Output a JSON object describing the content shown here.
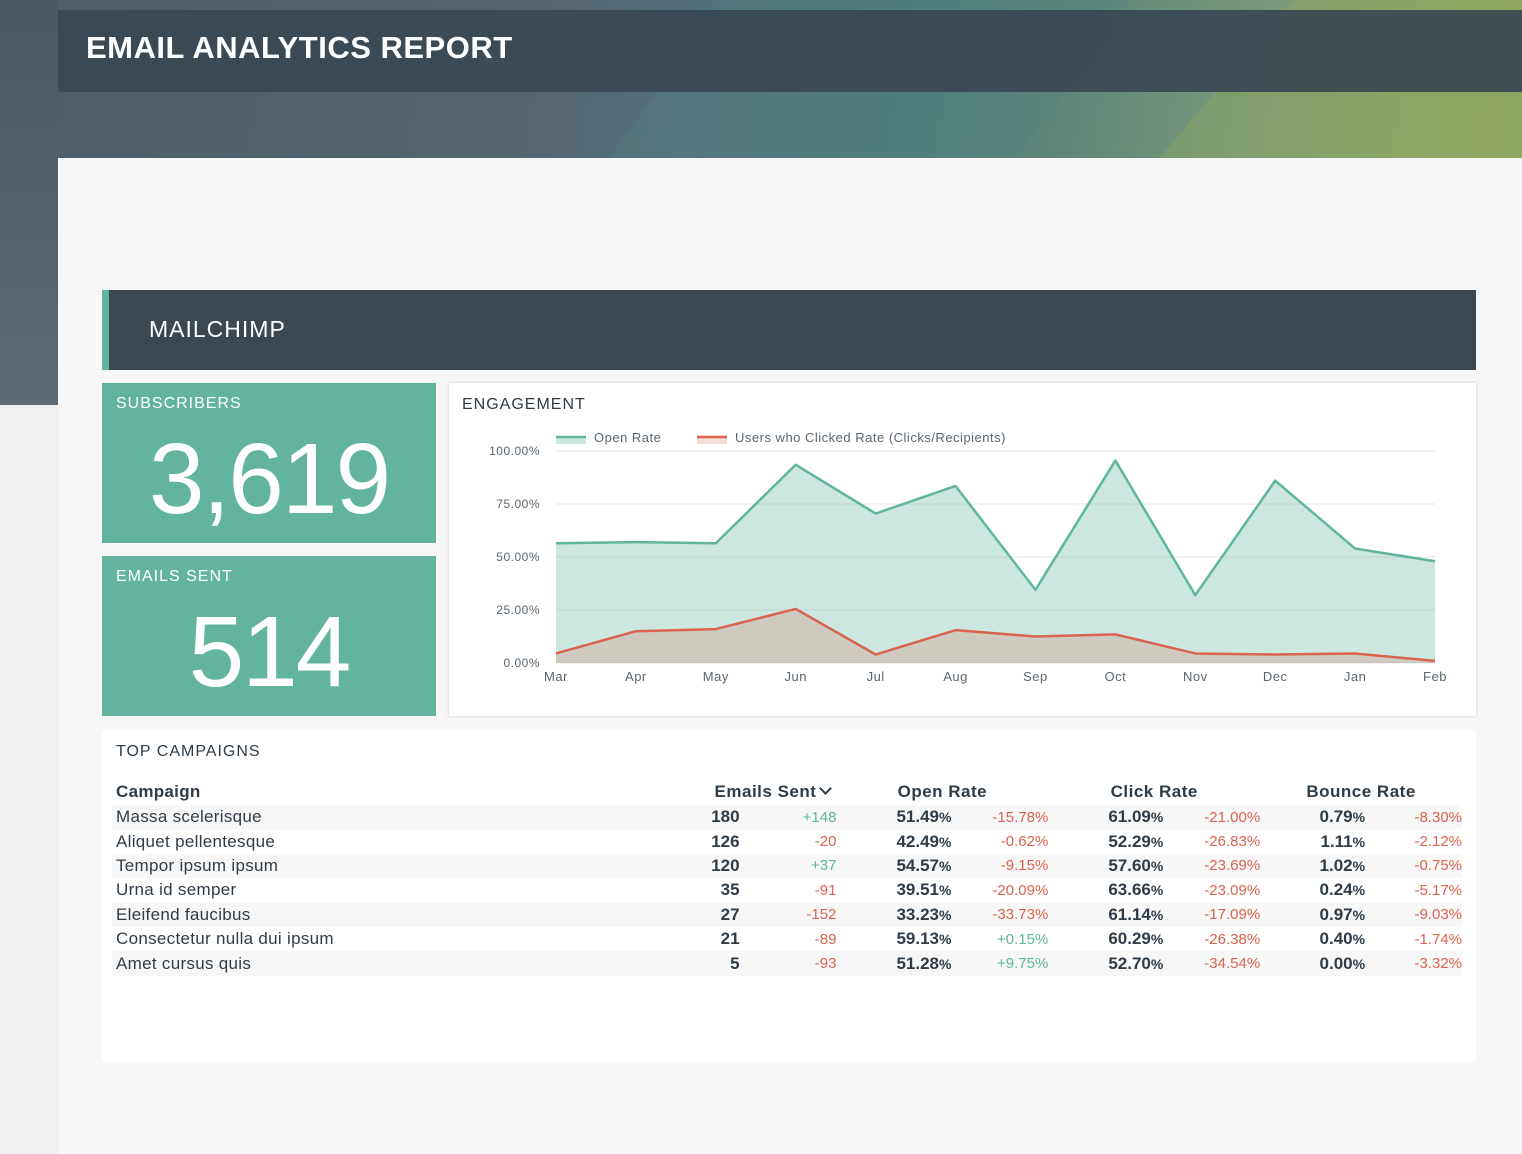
{
  "header": {
    "title": "EMAIL ANALYTICS REPORT"
  },
  "source": {
    "title": "MAILCHIMP"
  },
  "kpis": {
    "subscribers": {
      "label": "SUBSCRIBERS",
      "value": "3,619"
    },
    "emails_sent": {
      "label": "EMAILS SENT",
      "value": "514"
    }
  },
  "engagement": {
    "title": "ENGAGEMENT"
  },
  "colors": {
    "teal": "#5fb59d",
    "red": "#d9634f",
    "dark": "#3b4852"
  },
  "chart_data": {
    "type": "area",
    "categories": [
      "Mar",
      "Apr",
      "May",
      "Jun",
      "Jul",
      "Aug",
      "Sep",
      "Oct",
      "Nov",
      "Dec",
      "Jan",
      "Feb"
    ],
    "series": [
      {
        "name": "Open Rate",
        "values": [
          56.5,
          57.0,
          56.5,
          93.5,
          70.5,
          83.5,
          34.5,
          95.5,
          32.0,
          86.0,
          54.0,
          48.0
        ],
        "color": "#5fb59d"
      },
      {
        "name": "Users who Clicked Rate (Clicks/Recipients)",
        "values": [
          4.5,
          15.0,
          16.0,
          25.5,
          4.0,
          15.5,
          12.5,
          13.5,
          4.5,
          4.0,
          4.5,
          1.0
        ],
        "color": "#d9634f"
      }
    ],
    "ylim": [
      0,
      100
    ],
    "yticks": [
      "0.00%",
      "25.00%",
      "50.00%",
      "75.00%",
      "100.00%"
    ],
    "ytick_values": [
      0,
      25,
      50,
      75,
      100
    ],
    "grid": true,
    "legend": "top-left"
  },
  "campaigns": {
    "title": "TOP CAMPAIGNS",
    "headers": {
      "campaign": "Campaign",
      "sent": "Emails Sent",
      "open": "Open Rate",
      "click": "Click Rate",
      "bounce": "Bounce Rate"
    },
    "rows": [
      {
        "name": "Massa scelerisque",
        "sent": "180",
        "sent_d": "+148",
        "open": "51.49",
        "open_d": "-15.78%",
        "click": "61.09",
        "click_d": "-21.00%",
        "bounce": "0.79",
        "bounce_d": "-8.30%"
      },
      {
        "name": "Aliquet pellentesque",
        "sent": "126",
        "sent_d": "-20",
        "open": "42.49",
        "open_d": "-0.62%",
        "click": "52.29",
        "click_d": "-26.83%",
        "bounce": "1.11",
        "bounce_d": "-2.12%"
      },
      {
        "name": "Tempor ipsum ipsum",
        "sent": "120",
        "sent_d": "+37",
        "open": "54.57",
        "open_d": "-9.15%",
        "click": "57.60",
        "click_d": "-23.69%",
        "bounce": "1.02",
        "bounce_d": "-0.75%"
      },
      {
        "name": "Urna id semper",
        "sent": "35",
        "sent_d": "-91",
        "open": "39.51",
        "open_d": "-20.09%",
        "click": "63.66",
        "click_d": "-23.09%",
        "bounce": "0.24",
        "bounce_d": "-5.17%"
      },
      {
        "name": "Eleifend faucibus",
        "sent": "27",
        "sent_d": "-152",
        "open": "33.23",
        "open_d": "-33.73%",
        "click": "61.14",
        "click_d": "-17.09%",
        "bounce": "0.97",
        "bounce_d": "-9.03%"
      },
      {
        "name": "Consectetur nulla dui ipsum",
        "sent": "21",
        "sent_d": "-89",
        "open": "59.13",
        "open_d": "+0.15%",
        "click": "60.29",
        "click_d": "-26.38%",
        "bounce": "0.40",
        "bounce_d": "-1.74%"
      },
      {
        "name": "Amet cursus quis",
        "sent": "5",
        "sent_d": "-93",
        "open": "51.28",
        "open_d": "+9.75%",
        "click": "52.70",
        "click_d": "-34.54%",
        "bounce": "0.00",
        "bounce_d": "-3.32%"
      }
    ]
  }
}
